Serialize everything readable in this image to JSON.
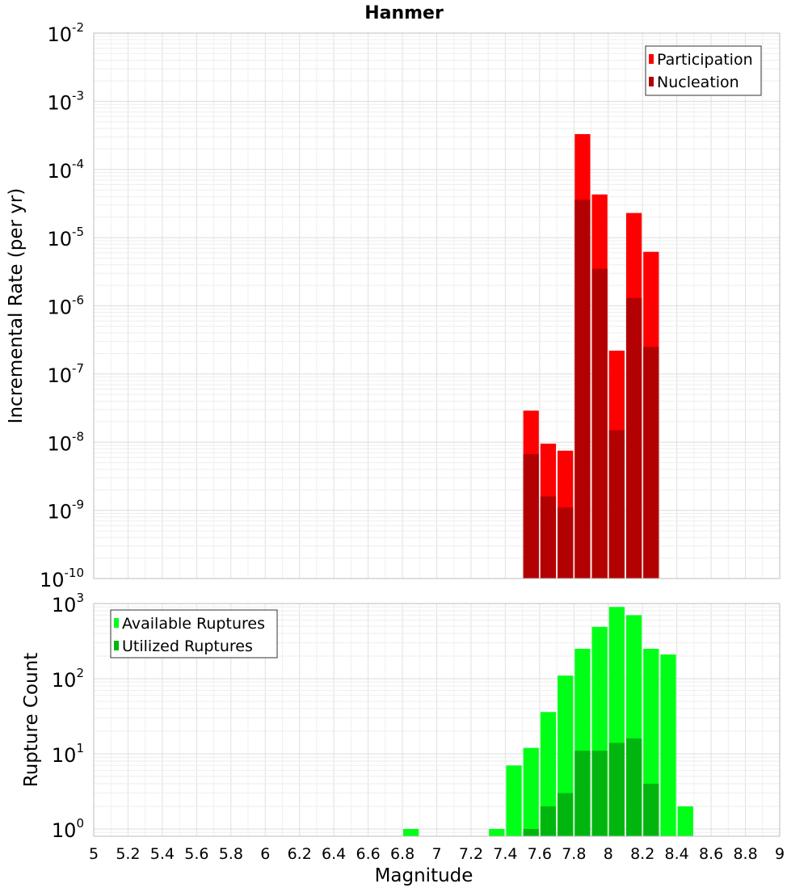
{
  "title": "Hanmer",
  "colors": {
    "participation": "#ff0000",
    "nucleation": "#b30000",
    "available": "#00ff17",
    "utilized": "#00b60e",
    "grid": "#e6e6e6",
    "frame": "#bdbdbd"
  },
  "chart_data": [
    {
      "type": "bar",
      "panel": "top",
      "scale": "log",
      "ylabel": "Incremental Rate (per yr)",
      "ylim": [
        1e-10,
        0.01
      ],
      "xlim": [
        5,
        9
      ],
      "y_tick_exponents": [
        "-10",
        "-9",
        "-8",
        "-7",
        "-6",
        "-5",
        "-4",
        "-3",
        "-2"
      ],
      "grid": true,
      "legend_position": "top-right",
      "bin_width": 0.1,
      "series": [
        {
          "name": "Participation",
          "x": [
            7.55,
            7.65,
            7.75,
            7.85,
            7.95,
            8.05,
            8.15,
            8.25
          ],
          "values": [
            2.9e-08,
            9.5e-09,
            7.5e-09,
            0.00033,
            4.3e-05,
            2.2e-07,
            2.3e-05,
            6.2e-06
          ]
        },
        {
          "name": "Nucleation",
          "x": [
            7.55,
            7.65,
            7.75,
            7.85,
            7.95,
            8.05,
            8.15,
            8.25
          ],
          "values": [
            6.7e-09,
            1.6e-09,
            1.1e-09,
            3.6e-05,
            3.5e-06,
            1.5e-08,
            1.3e-06,
            2.5e-07
          ]
        }
      ]
    },
    {
      "type": "bar",
      "panel": "bottom",
      "scale": "log",
      "xlabel": "Magnitude",
      "ylabel": "Rupture Count",
      "ylim": [
        0.8,
        1000
      ],
      "xlim": [
        5,
        9
      ],
      "y_tick_exponents": [
        "0",
        "1",
        "2",
        "3"
      ],
      "x_ticks": [
        "5",
        "5.2",
        "5.4",
        "5.6",
        "5.8",
        "6",
        "6.2",
        "6.4",
        "6.6",
        "6.8",
        "7",
        "7.2",
        "7.4",
        "7.6",
        "7.8",
        "8",
        "8.2",
        "8.4",
        "8.6",
        "8.8",
        "9"
      ],
      "grid": true,
      "legend_position": "top-left",
      "bin_width": 0.1,
      "series": [
        {
          "name": "Available Ruptures",
          "x": [
            6.85,
            7.35,
            7.45,
            7.55,
            7.65,
            7.75,
            7.85,
            7.95,
            8.05,
            8.15,
            8.25,
            8.35,
            8.45
          ],
          "values": [
            1,
            1,
            7,
            12,
            36,
            110,
            250,
            490,
            900,
            700,
            250,
            210,
            2
          ]
        },
        {
          "name": "Utilized Ruptures",
          "x": [
            7.55,
            7.65,
            7.75,
            7.85,
            7.95,
            8.05,
            8.15,
            8.25
          ],
          "values": [
            1,
            2,
            3,
            11,
            11,
            14,
            16,
            4
          ]
        }
      ]
    }
  ]
}
